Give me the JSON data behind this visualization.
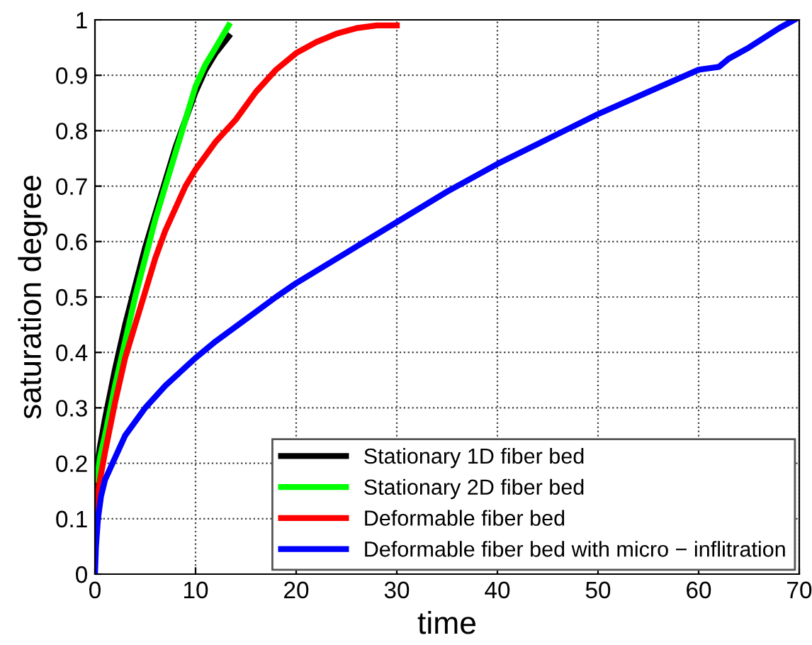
{
  "chart_data": {
    "type": "line",
    "xlabel": "time",
    "ylabel": "saturation degree",
    "xlim": [
      0,
      70
    ],
    "ylim": [
      0,
      1
    ],
    "xticks": [
      0,
      10,
      20,
      30,
      40,
      50,
      60,
      70
    ],
    "yticks": [
      0,
      0.1,
      0.2,
      0.3,
      0.4,
      0.5,
      0.6,
      0.7,
      0.8,
      0.9,
      1
    ],
    "grid": true,
    "legend": "bottom right",
    "line_style": "solid",
    "series": [
      {
        "name": "Stationary 1D fiber bed",
        "color": "#000000",
        "x": [
          0,
          0.2,
          0.5,
          1,
          2,
          3,
          4,
          5,
          6,
          7,
          8,
          9,
          10,
          11,
          12,
          13.3
        ],
        "values": [
          0.13,
          0.19,
          0.23,
          0.28,
          0.37,
          0.45,
          0.52,
          0.59,
          0.65,
          0.71,
          0.77,
          0.82,
          0.87,
          0.91,
          0.94,
          0.97
        ]
      },
      {
        "name": "Stationary 2D fiber bed",
        "color": "#00ff00",
        "x": [
          0.2,
          0.5,
          1,
          2,
          3,
          4,
          5,
          6,
          7,
          8,
          9,
          10,
          11,
          12,
          13.3
        ],
        "values": [
          0.17,
          0.21,
          0.25,
          0.34,
          0.42,
          0.5,
          0.57,
          0.64,
          0.7,
          0.76,
          0.82,
          0.88,
          0.92,
          0.95,
          0.99
        ]
      },
      {
        "name": "Deformable fiber bed",
        "color": "#ff0000",
        "x": [
          0,
          0.2,
          0.5,
          1,
          2,
          3,
          4,
          5,
          6,
          7,
          8,
          9,
          10,
          12,
          14,
          16,
          18,
          20,
          22,
          24,
          26,
          28,
          30
        ],
        "values": [
          0.1,
          0.13,
          0.17,
          0.22,
          0.31,
          0.39,
          0.45,
          0.51,
          0.57,
          0.62,
          0.66,
          0.7,
          0.73,
          0.78,
          0.82,
          0.87,
          0.91,
          0.94,
          0.96,
          0.975,
          0.985,
          0.99,
          0.99
        ]
      },
      {
        "name": "Deformable fiber bed with micro − inflitration",
        "color": "#0000ff",
        "x": [
          0,
          0.1,
          0.3,
          0.6,
          1,
          2,
          3,
          5,
          7,
          10,
          12,
          15,
          18,
          20,
          25,
          30,
          35,
          40,
          45,
          50,
          55,
          60,
          62,
          63,
          65,
          68,
          69.5
        ],
        "values": [
          0,
          0.05,
          0.1,
          0.14,
          0.17,
          0.21,
          0.25,
          0.3,
          0.34,
          0.39,
          0.42,
          0.46,
          0.5,
          0.525,
          0.58,
          0.635,
          0.69,
          0.74,
          0.785,
          0.83,
          0.87,
          0.91,
          0.915,
          0.93,
          0.95,
          0.985,
          1
        ]
      }
    ]
  }
}
